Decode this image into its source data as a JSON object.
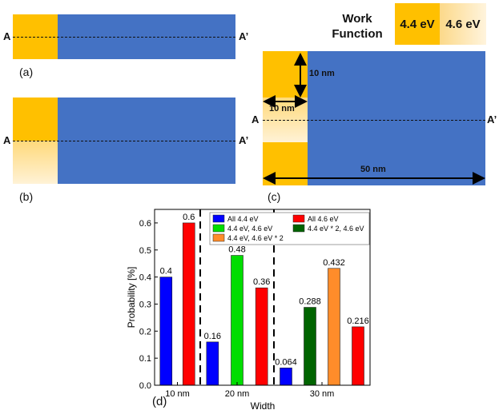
{
  "panel_a": {
    "label": "(a)",
    "left_marker": "A",
    "right_marker": "A’"
  },
  "panel_b": {
    "label": "(b)",
    "left_marker": "A",
    "right_marker": "A’"
  },
  "panel_c": {
    "label": "(c)",
    "left_marker": "A",
    "right_marker": "A’",
    "dim_height": "10 nm",
    "dim_width": "10 nm",
    "dim_length": "50 nm"
  },
  "work_function": {
    "title_line1": "Work",
    "title_line2": "Function",
    "high_label": "4.4 eV",
    "low_label": "4.6 eV"
  },
  "panel_d_label": "(d)",
  "colors": {
    "gold": "#ffc000",
    "blue": "#4472c4",
    "light_gold": "#fde5a8"
  },
  "chart_data": {
    "type": "bar",
    "xlabel": "Width",
    "ylabel": "Probability [%]",
    "ylim": [
      0,
      0.65
    ],
    "yticks": [
      "0.0",
      "0.1",
      "0.2",
      "0.3",
      "0.4",
      "0.5",
      "0.6"
    ],
    "groups": [
      "10 nm",
      "20 nm",
      "30 nm"
    ],
    "series": [
      {
        "name": "All 4.4 eV",
        "color": "#0000ff"
      },
      {
        "name": "All 4.6 eV",
        "color": "#ff0000"
      },
      {
        "name": "4.4 eV, 4.6 eV",
        "color": "#00dd00"
      },
      {
        "name": "4.4 eV * 2, 4.6 eV",
        "color": "#006400"
      },
      {
        "name": "4.4 eV, 4.6 eV * 2",
        "color": "#ff8c2a"
      }
    ],
    "bars": [
      {
        "group": "10 nm",
        "series": "All 4.4 eV",
        "value": 0.4,
        "label": "0.4"
      },
      {
        "group": "10 nm",
        "series": "All 4.6 eV",
        "value": 0.6,
        "label": "0.6"
      },
      {
        "group": "20 nm",
        "series": "All 4.4 eV",
        "value": 0.16,
        "label": "0.16"
      },
      {
        "group": "20 nm",
        "series": "4.4 eV, 4.6 eV",
        "value": 0.48,
        "label": "0.48"
      },
      {
        "group": "20 nm",
        "series": "All 4.6 eV",
        "value": 0.36,
        "label": "0.36"
      },
      {
        "group": "30 nm",
        "series": "All 4.4 eV",
        "value": 0.064,
        "label": "0.064"
      },
      {
        "group": "30 nm",
        "series": "4.4 eV * 2, 4.6 eV",
        "value": 0.288,
        "label": "0.288"
      },
      {
        "group": "30 nm",
        "series": "4.4 eV, 4.6 eV * 2",
        "value": 0.432,
        "label": "0.432"
      },
      {
        "group": "30 nm",
        "series": "All 4.6 eV",
        "value": 0.216,
        "label": "0.216"
      }
    ]
  }
}
